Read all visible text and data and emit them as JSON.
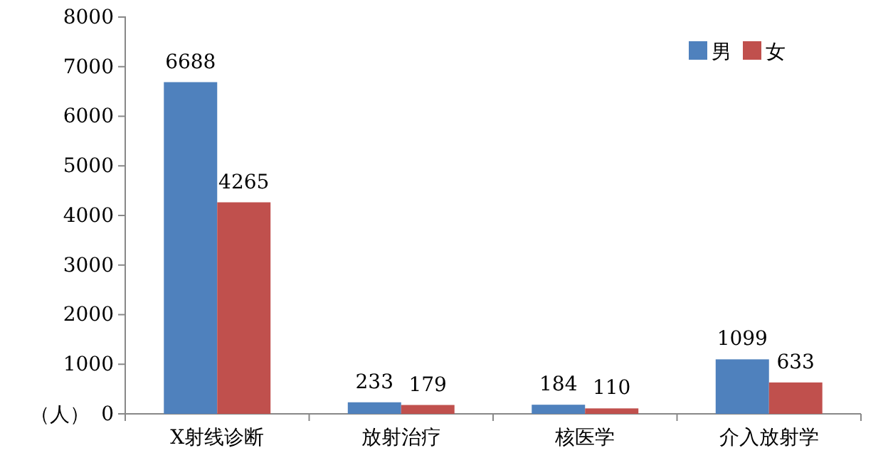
{
  "chart_data": {
    "type": "bar",
    "ylabel": "（人）",
    "categories": [
      "X射线诊断",
      "放射治疗",
      "核医学",
      "介入放射学"
    ],
    "series": [
      {
        "name": "男",
        "color": "#4f81bd",
        "values": [
          6688,
          233,
          184,
          1099
        ]
      },
      {
        "name": "女",
        "color": "#c0504d",
        "values": [
          4265,
          179,
          110,
          633
        ]
      }
    ],
    "ylim": [
      0,
      8000
    ],
    "yticks": [
      0,
      1000,
      2000,
      3000,
      4000,
      5000,
      6000,
      7000,
      8000
    ],
    "data_labels": true,
    "legend": "top right",
    "grid": false
  }
}
